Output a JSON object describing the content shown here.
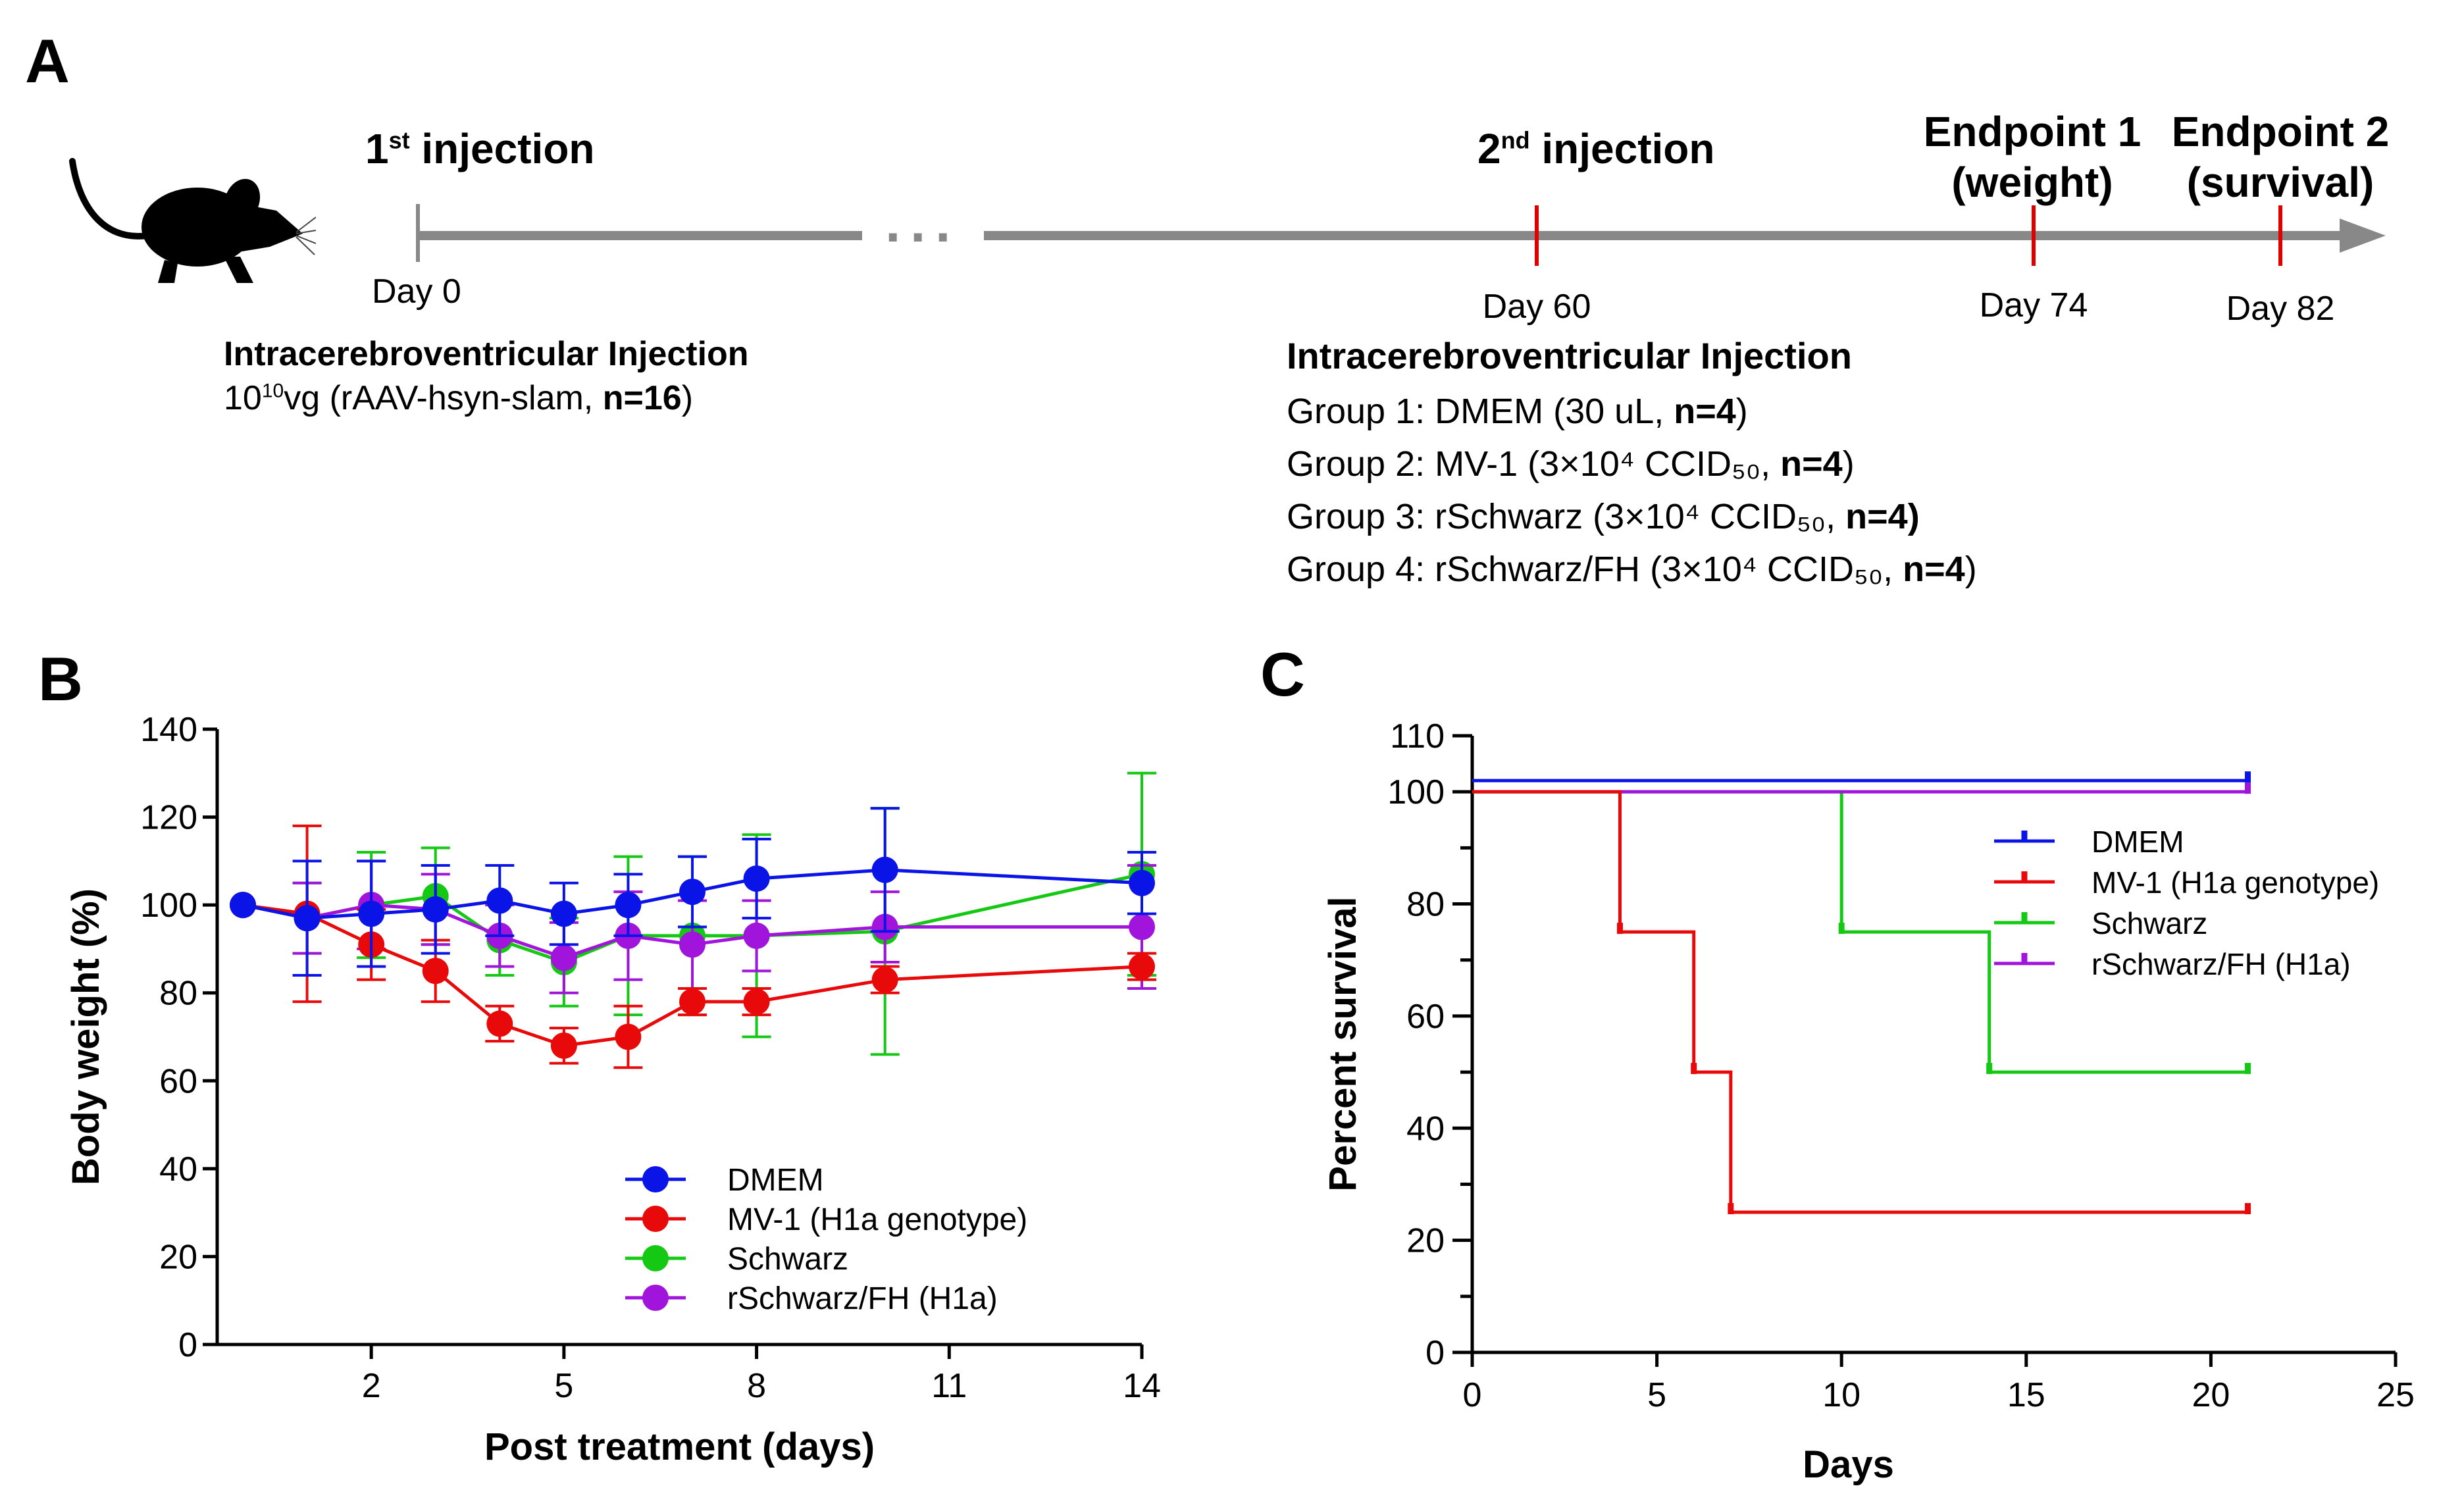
{
  "panel_a": {
    "label": "A",
    "mouse_icon": "mouse-icon",
    "first_injection": {
      "title": "1",
      "sup": "st",
      "rest": " injection",
      "day": "Day 0"
    },
    "ellipsis": "···",
    "left_block": {
      "title": "Intracerebroventricular Injection",
      "dose_base": "10",
      "dose_exp": "10",
      "dose_rest": "vg (rAAV-hsyn-slam, ",
      "dose_n": "n=16",
      "dose_close": ")"
    },
    "second_injection": {
      "title": "2",
      "sup": "nd",
      "rest": " injection",
      "day": "Day 60"
    },
    "endpoint1": {
      "line1": "Endpoint 1",
      "line2": "(weight)",
      "day": "Day 74"
    },
    "endpoint2": {
      "line1": "Endpoint 2",
      "line2": "(survival)",
      "day": "Day 82"
    },
    "right_block": {
      "title": "Intracerebroventricular Injection",
      "groups": [
        {
          "text": "Group 1: DMEM (30 uL, ",
          "n": "n=4",
          "close": ")"
        },
        {
          "text": "Group 2: MV-1 (3×10⁴ CCID₅₀, ",
          "n": "n=4",
          "close": ")"
        },
        {
          "text": "Group 3: rSchwarz (3×10⁴ CCID₅₀, ",
          "n": "n=4)",
          "close": ""
        },
        {
          "text": "Group 4: rSchwarz/FH (3×10⁴ CCID₅₀, ",
          "n": "n=4",
          "close": ")"
        }
      ]
    },
    "colors": {
      "timeline": "#888888",
      "marker": "#e00000"
    }
  },
  "chart_data": [
    {
      "panel": "B",
      "type": "line",
      "xlabel": "Post treatment (days)",
      "ylabel": "Body weight (%)",
      "xlim": [
        -0.4,
        14
      ],
      "ylim": [
        0,
        140
      ],
      "xticks": [
        2,
        5,
        8,
        11,
        14
      ],
      "yticks": [
        0,
        20,
        40,
        60,
        80,
        100,
        120,
        140
      ],
      "legend_position": "lower-right",
      "series": [
        {
          "name": "DMEM",
          "color": "#0a14e6",
          "x": [
            0,
            1,
            2,
            3,
            4,
            5,
            6,
            7,
            8,
            10,
            14
          ],
          "y": [
            100,
            97,
            98,
            99,
            101,
            98,
            100,
            103,
            106,
            108,
            105
          ],
          "err": [
            0,
            13,
            12,
            10,
            8,
            7,
            7,
            8,
            9,
            14,
            7
          ]
        },
        {
          "name": "MV-1 (H1a genotype)",
          "color": "#e80a0a",
          "x": [
            0,
            1,
            2,
            3,
            4,
            5,
            6,
            7,
            8,
            10,
            14
          ],
          "y": [
            100,
            98,
            91,
            85,
            73,
            68,
            70,
            78,
            78,
            83,
            86
          ],
          "err": [
            0,
            20,
            8,
            7,
            4,
            4,
            7,
            3,
            3,
            3,
            3
          ]
        },
        {
          "name": "Schwarz",
          "color": "#14c814",
          "x": [
            0,
            1,
            2,
            3,
            4,
            5,
            6,
            7,
            8,
            10,
            14
          ],
          "y": [
            100,
            97,
            100,
            102,
            92,
            87,
            93,
            93,
            93,
            94,
            107
          ],
          "err": [
            0,
            8,
            12,
            11,
            8,
            10,
            18,
            18,
            23,
            28,
            23
          ]
        },
        {
          "name": "rSchwarz/FH (H1a)",
          "color": "#a014dc",
          "x": [
            0,
            1,
            2,
            3,
            4,
            5,
            6,
            7,
            8,
            10,
            14
          ],
          "y": [
            100,
            97,
            100,
            99,
            93,
            88,
            93,
            91,
            93,
            95,
            95
          ],
          "err": [
            0,
            8,
            10,
            8,
            7,
            8,
            10,
            10,
            8,
            8,
            14
          ]
        }
      ]
    },
    {
      "panel": "C",
      "type": "line",
      "xlabel": "Days",
      "ylabel": "Percent survival",
      "xlim": [
        0,
        25
      ],
      "ylim": [
        0,
        110
      ],
      "xticks": [
        0,
        5,
        10,
        15,
        20,
        25
      ],
      "yticks": [
        0,
        20,
        40,
        60,
        80,
        100,
        110
      ],
      "legend_position": "right",
      "series": [
        {
          "name": "DMEM",
          "color": "#0a14e6",
          "steps": [
            [
              0,
              100
            ],
            [
              21,
              100
            ]
          ],
          "offset": 2
        },
        {
          "name": "MV-1 (H1a genotype)",
          "color": "#e80a0a",
          "steps": [
            [
              0,
              100
            ],
            [
              4,
              75
            ],
            [
              6,
              50
            ],
            [
              7,
              25
            ],
            [
              21,
              25
            ]
          ],
          "offset": 0
        },
        {
          "name": "Schwarz",
          "color": "#14c814",
          "steps": [
            [
              0,
              100
            ],
            [
              10,
              75
            ],
            [
              14,
              50
            ],
            [
              21,
              50
            ]
          ],
          "offset": 0
        },
        {
          "name": "rSchwarz/FH (H1a)",
          "color": "#a014dc",
          "steps": [
            [
              0,
              100
            ],
            [
              21,
              100
            ]
          ],
          "offset": 0
        }
      ]
    }
  ],
  "panel_b_label": "B",
  "panel_c_label": "C"
}
